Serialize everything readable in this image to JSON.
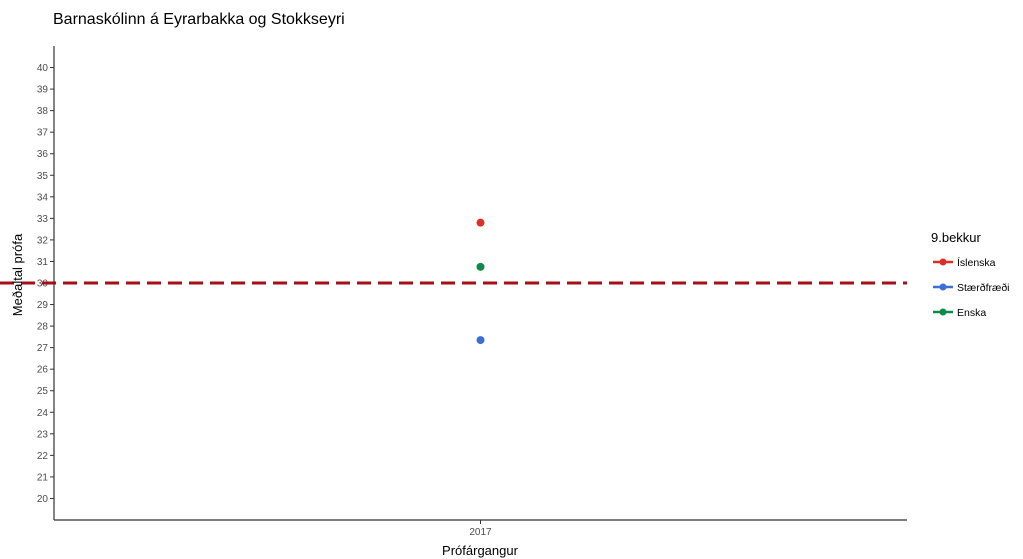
{
  "chart_data": {
    "type": "scatter",
    "title": "Barnaskólinn á Eyrarbakka og Stokkseyri",
    "xlabel": "Prófárgangur",
    "ylabel": "Meðaltal prófa",
    "categories": [
      "2017"
    ],
    "ylim": [
      19,
      41
    ],
    "yticks": [
      20,
      21,
      22,
      23,
      24,
      25,
      26,
      27,
      28,
      29,
      30,
      31,
      32,
      33,
      34,
      35,
      36,
      37,
      38,
      39,
      40
    ],
    "grid": false,
    "legend": {
      "title": "9.bekkur",
      "placement": "right"
    },
    "reference_line": {
      "y": 30,
      "style": "dashed",
      "color": "#a50f15"
    },
    "series": [
      {
        "name": "Íslenska",
        "color": "#de2d26",
        "values": [
          32.8
        ]
      },
      {
        "name": "Stærðfræði",
        "color": "#3b6fd6",
        "values": [
          27.35
        ]
      },
      {
        "name": "Enska",
        "color": "#0e8a4b",
        "values": [
          30.75
        ]
      }
    ]
  }
}
